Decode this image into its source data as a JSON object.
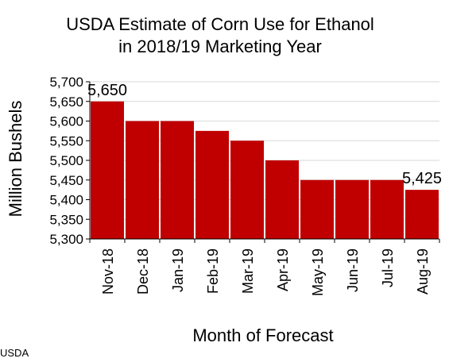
{
  "chart_data": {
    "type": "bar",
    "title_lines": [
      "USDA Estimate of Corn Use for Ethanol",
      "in 2018/19 Marketing Year"
    ],
    "xlabel": "Month of Forecast",
    "ylabel": "Million Bushels",
    "categories": [
      "Nov-18",
      "Dec-18",
      "Jan-19",
      "Feb-19",
      "Mar-19",
      "Apr-19",
      "May-19",
      "Jun-19",
      "Jul-19",
      "Aug-19"
    ],
    "values": [
      5650,
      5600,
      5600,
      5575,
      5550,
      5500,
      5450,
      5450,
      5450,
      5425
    ],
    "ylim": [
      5300,
      5700
    ],
    "yticks": [
      5300,
      5350,
      5400,
      5450,
      5500,
      5550,
      5600,
      5650,
      5700
    ],
    "ytick_labels": [
      "5,300",
      "5,350",
      "5,400",
      "5,450",
      "5,500",
      "5,550",
      "5,600",
      "5,650",
      "5,700"
    ],
    "data_labels": [
      {
        "index": 0,
        "text": "5,650"
      },
      {
        "index": 9,
        "text": "5,425"
      }
    ],
    "grid": true,
    "bar_color": "#c00000",
    "grid_color": "#d9d9d9"
  },
  "source": "USDA"
}
